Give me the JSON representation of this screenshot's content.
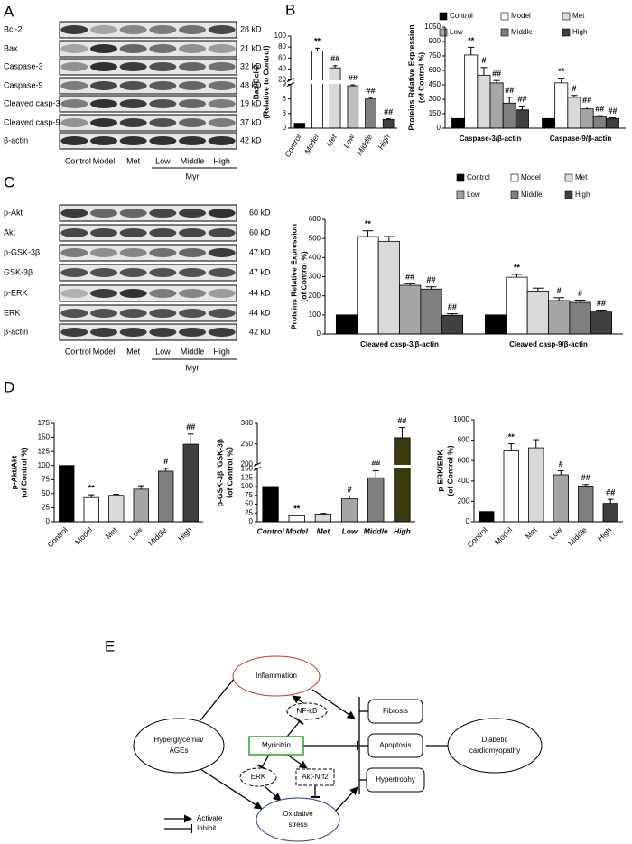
{
  "panel_labels": [
    "A",
    "B",
    "C",
    "D",
    "E"
  ],
  "blot_a": {
    "proteins": [
      "Bcl-2",
      "Bax",
      "Caspase-3",
      "Caspase-9",
      "Cleaved casp-3",
      "Cleaved casp-9",
      "β-actin"
    ],
    "sizes": [
      "28 kD",
      "21 kD",
      "32 kD",
      "48 kD",
      "19 kD",
      "37 kD",
      "42 kD"
    ],
    "lanes": [
      "Control",
      "Model",
      "Met",
      "Low",
      "Middle",
      "High"
    ],
    "group": "Myr"
  },
  "blot_c": {
    "proteins": [
      "p-Akt",
      "Akt",
      "p-GSK-3β",
      "GSK-3β",
      "p-ERK",
      "ERK",
      "β-actin"
    ],
    "sizes": [
      "60  kD",
      "60 kD",
      "47 kD",
      "47 kD",
      "44 kD",
      "44 kD",
      "42 kD"
    ],
    "lanes": [
      "Control",
      "Model",
      "Met",
      "Low",
      "Middle",
      "High"
    ],
    "group": "Myr"
  },
  "chart_data": [
    {
      "type": "bar",
      "ylabel": [
        "Bax/Bcl-2",
        "(Relative to Control)"
      ],
      "categories": [
        "Control",
        "Model",
        "Met",
        "Low",
        "Middle",
        "High"
      ],
      "values": [
        1,
        73,
        42,
        8.7,
        6,
        1.8
      ],
      "errors": [
        null,
        5,
        4,
        0.2,
        0.3,
        0.15
      ],
      "annotations": [
        null,
        "**",
        "##",
        "##",
        "##",
        "##"
      ],
      "colors": [
        "#000000",
        "#ffffff",
        "#d9d9d9",
        "#bfbfbf",
        "#808080",
        "#404040"
      ],
      "ylim": [
        0,
        100
      ],
      "ybreak": [
        9,
        20
      ],
      "yticks": [
        0,
        3,
        6,
        9,
        20,
        40,
        60,
        80,
        100
      ]
    },
    {
      "type": "grouped_bar",
      "ylabel": [
        "Proteins Relative Expression",
        "(of Control %)"
      ],
      "categories": [
        "Caspase-3/β-actin",
        "Caspase-9/β-actin"
      ],
      "series": [
        {
          "name": "Control",
          "color": "#000000",
          "values": [
            100,
            100
          ],
          "errors": [
            null,
            null
          ],
          "annotations": [
            null,
            null
          ]
        },
        {
          "name": "Model",
          "color": "#ffffff",
          "values": [
            760,
            470
          ],
          "errors": [
            80,
            50
          ],
          "annotations": [
            "**",
            "**"
          ]
        },
        {
          "name": "Met",
          "color": "#d9d9d9",
          "values": [
            550,
            320
          ],
          "errors": [
            80,
            20
          ],
          "annotations": [
            "#",
            "#"
          ]
        },
        {
          "name": "Low",
          "color": "#a6a6a6",
          "values": [
            470,
            200
          ],
          "errors": [
            25,
            20
          ],
          "annotations": [
            "##",
            "##"
          ]
        },
        {
          "name": "Middle",
          "color": "#7f7f7f",
          "values": [
            260,
            120
          ],
          "errors": [
            60,
            10
          ],
          "annotations": [
            "##",
            "##"
          ]
        },
        {
          "name": "High",
          "color": "#404040",
          "values": [
            190,
            100
          ],
          "errors": [
            40,
            8
          ],
          "annotations": [
            "##",
            "##"
          ]
        }
      ],
      "ylim": [
        0,
        1050
      ],
      "yticks": [
        0,
        150,
        300,
        450,
        600,
        750,
        900,
        1050
      ]
    },
    {
      "type": "grouped_bar",
      "ylabel": [
        "Proteins Relative Expression",
        "(of Control %)"
      ],
      "categories": [
        "Cleaved casp-3/β-actin",
        "Cleaved casp-9/β-actin"
      ],
      "series": [
        {
          "name": "Control",
          "color": "#000000",
          "values": [
            100,
            100
          ],
          "errors": [
            null,
            null
          ],
          "annotations": [
            null,
            null
          ]
        },
        {
          "name": "Model",
          "color": "#ffffff",
          "values": [
            510,
            297
          ],
          "errors": [
            30,
            15
          ],
          "annotations": [
            "**",
            "**"
          ]
        },
        {
          "name": "Met",
          "color": "#d9d9d9",
          "values": [
            485,
            225
          ],
          "errors": [
            25,
            15
          ],
          "annotations": [
            null,
            null
          ]
        },
        {
          "name": "Low",
          "color": "#a6a6a6",
          "values": [
            255,
            175
          ],
          "errors": [
            8,
            15
          ],
          "annotations": [
            "##",
            "#"
          ]
        },
        {
          "name": "Middle",
          "color": "#7f7f7f",
          "values": [
            235,
            165
          ],
          "errors": [
            12,
            12
          ],
          "annotations": [
            "##",
            "#"
          ]
        },
        {
          "name": "High",
          "color": "#404040",
          "values": [
            98,
            115
          ],
          "errors": [
            8,
            10
          ],
          "annotations": [
            "##",
            "##"
          ]
        }
      ],
      "ylim": [
        0,
        600
      ],
      "yticks": [
        0,
        100,
        200,
        300,
        400,
        500,
        600
      ]
    },
    {
      "type": "bar",
      "ylabel": [
        "p-Akt/Akt",
        "(of Control %)"
      ],
      "categories": [
        "Control",
        "Model",
        "Met",
        "Low",
        "Middle",
        "High"
      ],
      "values": [
        100,
        43,
        47,
        58,
        90,
        138
      ],
      "errors": [
        null,
        5,
        2,
        6,
        5,
        18
      ],
      "annotations": [
        null,
        "**",
        null,
        null,
        "#",
        "##"
      ],
      "colors": [
        "#000000",
        "#ffffff",
        "#d9d9d9",
        "#a6a6a6",
        "#7f7f7f",
        "#404040"
      ],
      "ylim": [
        0,
        175
      ],
      "yticks": [
        0,
        25,
        50,
        75,
        100,
        125,
        150,
        175
      ]
    },
    {
      "type": "bar",
      "ylabel": [
        "p-GSK-3β /GSK-3β",
        "（of Control %）"
      ],
      "categories": [
        "Control",
        "Model",
        "Met",
        "Low",
        "Middle",
        "High"
      ],
      "values": [
        100,
        17,
        22,
        65,
        125,
        265
      ],
      "errors": [
        null,
        1,
        2,
        8,
        20,
        25
      ],
      "annotations": [
        null,
        "**",
        null,
        "#",
        "##",
        "##"
      ],
      "colors": [
        "#000000",
        "#ffffff",
        "#d9d9d9",
        "#a6a6a6",
        "#7f7f7f",
        "#3b3b0f"
      ],
      "ylim": [
        0,
        300
      ],
      "ybreak": [
        150,
        200
      ],
      "yticks": [
        0,
        25,
        50,
        75,
        100,
        125,
        150,
        200,
        250,
        300
      ]
    },
    {
      "type": "bar",
      "ylabel": [
        "p-ERK/ERK",
        "(of Control %)"
      ],
      "categories": [
        "Control",
        "Model",
        "Met",
        "Low",
        "Middle",
        "High"
      ],
      "values": [
        100,
        695,
        725,
        460,
        350,
        180
      ],
      "errors": [
        null,
        70,
        80,
        40,
        15,
        40
      ],
      "annotations": [
        null,
        "**",
        null,
        "#",
        "##",
        "##"
      ],
      "colors": [
        "#000000",
        "#ffffff",
        "#d9d9d9",
        "#a6a6a6",
        "#7f7f7f",
        "#404040"
      ],
      "ylim": [
        0,
        1000
      ],
      "yticks": [
        0,
        200,
        400,
        600,
        800,
        1000
      ]
    }
  ],
  "diagram": {
    "inflammation": "Inflammation",
    "nf_kb": "NF-κB",
    "hyperglycemia": [
      "Hyperglycemia/",
      "AGEs"
    ],
    "myricitrin": "Myricitrin",
    "erk": "ERK",
    "akt_nrf2": "Akt-Nrf2",
    "oxidative_stress": [
      "Oxidative",
      "stress"
    ],
    "outcomes": [
      "Fibrosis",
      "Apoptosis",
      "Hypertrophy"
    ],
    "disease": [
      "Diabetic",
      "cardiomyopathy"
    ],
    "legend": [
      "Activate",
      "Inhibit"
    ]
  }
}
